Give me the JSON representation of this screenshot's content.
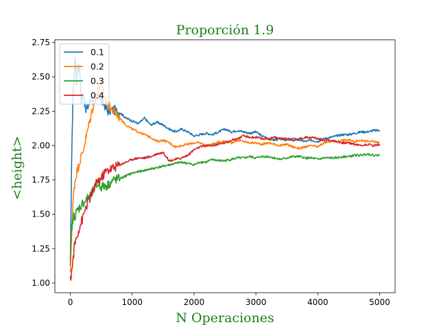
{
  "chart_data": {
    "type": "line",
    "title": "Proporción 1.9",
    "xlabel": "N Operaciones",
    "ylabel": "<height>",
    "xlim": [
      -250,
      5250
    ],
    "ylim": [
      0.93,
      2.77
    ],
    "xticks": [
      0,
      1000,
      2000,
      3000,
      4000,
      5000
    ],
    "yticks": [
      1.0,
      1.25,
      1.5,
      1.75,
      2.0,
      2.25,
      2.5,
      2.75
    ],
    "xtick_labels": [
      "0",
      "1000",
      "2000",
      "3000",
      "4000",
      "5000"
    ],
    "ytick_labels": [
      "1.00",
      "1.25",
      "1.50",
      "1.75",
      "2.00",
      "2.25",
      "2.50",
      "2.75"
    ],
    "legend": {
      "position": "top-left"
    },
    "grid": false,
    "series": [
      {
        "name": "0.1",
        "color": "#1f77b4",
        "x": [
          0,
          20,
          40,
          60,
          80,
          100,
          120,
          150,
          180,
          210,
          250,
          300,
          350,
          400,
          450,
          500,
          550,
          600,
          700,
          800,
          900,
          1000,
          1100,
          1200,
          1300,
          1400,
          1500,
          1600,
          1700,
          1800,
          1900,
          2000,
          2100,
          2200,
          2300,
          2400,
          2500,
          2600,
          2700,
          2800,
          2900,
          3000,
          3100,
          3200,
          3300,
          3400,
          3500,
          3600,
          3700,
          3800,
          3900,
          4000,
          4100,
          4200,
          4300,
          4400,
          4500,
          4600,
          4700,
          4800,
          4900,
          5000
        ],
        "y": [
          1.1,
          1.85,
          2.35,
          2.5,
          2.65,
          2.45,
          2.6,
          2.55,
          2.3,
          2.4,
          2.25,
          2.3,
          2.35,
          2.28,
          2.4,
          2.32,
          2.3,
          2.25,
          2.26,
          2.24,
          2.2,
          2.18,
          2.16,
          2.2,
          2.15,
          2.17,
          2.15,
          2.12,
          2.1,
          2.12,
          2.1,
          2.07,
          2.08,
          2.09,
          2.08,
          2.1,
          2.12,
          2.1,
          2.11,
          2.1,
          2.09,
          2.1,
          2.07,
          2.05,
          2.04,
          2.05,
          2.04,
          2.05,
          2.04,
          2.03,
          2.04,
          2.03,
          2.05,
          2.06,
          2.07,
          2.08,
          2.08,
          2.09,
          2.1,
          2.1,
          2.11,
          2.11
        ]
      },
      {
        "name": "0.2",
        "color": "#ff7f0e",
        "x": [
          0,
          20,
          40,
          60,
          80,
          100,
          130,
          160,
          200,
          250,
          300,
          350,
          400,
          450,
          500,
          550,
          600,
          700,
          800,
          900,
          1000,
          1100,
          1200,
          1300,
          1400,
          1500,
          1600,
          1700,
          1800,
          1900,
          2000,
          2100,
          2200,
          2300,
          2400,
          2500,
          2600,
          2700,
          2800,
          2900,
          3000,
          3100,
          3200,
          3300,
          3400,
          3500,
          3600,
          3700,
          3800,
          3900,
          4000,
          4100,
          4200,
          4300,
          4400,
          4500,
          4600,
          4700,
          4800,
          4900,
          5000
        ],
        "y": [
          1.05,
          1.35,
          1.55,
          1.7,
          1.75,
          1.8,
          1.85,
          1.9,
          1.95,
          2.05,
          2.15,
          2.25,
          2.35,
          2.4,
          2.45,
          2.35,
          2.3,
          2.25,
          2.2,
          2.15,
          2.12,
          2.1,
          2.08,
          2.06,
          2.03,
          2.04,
          2.02,
          1.99,
          2.0,
          2.01,
          2.02,
          2.02,
          2.0,
          2.01,
          2.03,
          2.03,
          2.02,
          2.04,
          2.03,
          2.02,
          2.02,
          2.01,
          2.02,
          2.01,
          2.0,
          2.01,
          1.99,
          1.98,
          1.99,
          2.0,
          1.99,
          2.02,
          2.03,
          2.03,
          2.04,
          2.04,
          2.03,
          2.04,
          2.03,
          2.03,
          2.02
        ]
      },
      {
        "name": "0.3",
        "color": "#2ca02c",
        "x": [
          0,
          20,
          40,
          60,
          80,
          100,
          150,
          200,
          250,
          300,
          350,
          400,
          450,
          500,
          600,
          700,
          800,
          900,
          1000,
          1100,
          1200,
          1300,
          1400,
          1500,
          1600,
          1700,
          1800,
          1900,
          2000,
          2100,
          2200,
          2300,
          2400,
          2500,
          2600,
          2700,
          2800,
          2900,
          3000,
          3100,
          3200,
          3300,
          3400,
          3500,
          3600,
          3700,
          3800,
          3900,
          4000,
          4100,
          4200,
          4300,
          4400,
          4500,
          4600,
          4700,
          4800,
          4900,
          5000
        ],
        "y": [
          1.15,
          1.4,
          1.45,
          1.5,
          1.48,
          1.52,
          1.55,
          1.58,
          1.6,
          1.63,
          1.65,
          1.7,
          1.72,
          1.7,
          1.71,
          1.75,
          1.76,
          1.78,
          1.8,
          1.81,
          1.82,
          1.83,
          1.84,
          1.85,
          1.86,
          1.87,
          1.88,
          1.87,
          1.86,
          1.88,
          1.88,
          1.9,
          1.89,
          1.89,
          1.9,
          1.91,
          1.91,
          1.92,
          1.91,
          1.92,
          1.92,
          1.91,
          1.9,
          1.91,
          1.92,
          1.92,
          1.91,
          1.91,
          1.9,
          1.91,
          1.91,
          1.91,
          1.92,
          1.92,
          1.93,
          1.93,
          1.94,
          1.93,
          1.93
        ]
      },
      {
        "name": "0.4",
        "color": "#d62728",
        "x": [
          0,
          20,
          40,
          60,
          80,
          100,
          130,
          160,
          200,
          250,
          300,
          350,
          400,
          450,
          500,
          550,
          600,
          700,
          800,
          900,
          1000,
          1100,
          1200,
          1300,
          1400,
          1500,
          1600,
          1700,
          1800,
          1900,
          2000,
          2100,
          2200,
          2300,
          2400,
          2500,
          2600,
          2700,
          2800,
          2900,
          3000,
          3100,
          3200,
          3300,
          3400,
          3500,
          3600,
          3700,
          3800,
          3900,
          4000,
          4100,
          4200,
          4300,
          4400,
          4500,
          4600,
          4700,
          4800,
          4900,
          5000
        ],
        "y": [
          1.02,
          1.08,
          1.15,
          1.25,
          1.3,
          1.33,
          1.38,
          1.42,
          1.47,
          1.55,
          1.6,
          1.65,
          1.7,
          1.75,
          1.76,
          1.8,
          1.82,
          1.84,
          1.86,
          1.88,
          1.9,
          1.91,
          1.91,
          1.92,
          1.94,
          1.95,
          1.89,
          1.9,
          1.91,
          1.93,
          1.97,
          1.99,
          2.0,
          2.0,
          2.01,
          2.02,
          2.04,
          2.05,
          2.07,
          2.06,
          2.06,
          2.05,
          2.05,
          2.06,
          2.05,
          2.05,
          2.04,
          2.05,
          2.06,
          2.06,
          2.05,
          2.04,
          2.04,
          2.03,
          2.02,
          2.02,
          2.01,
          2.0,
          2.01,
          2.0,
          2.01
        ]
      }
    ]
  }
}
